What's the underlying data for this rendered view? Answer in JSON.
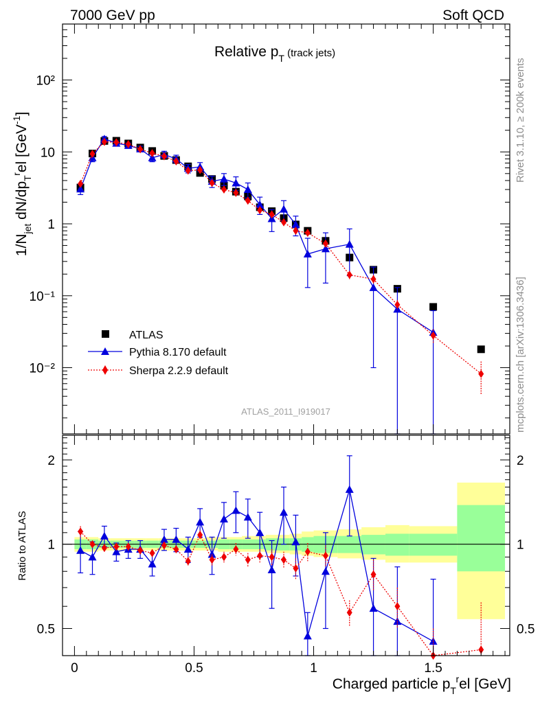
{
  "header": {
    "beam": "7000 GeV pp",
    "process": "Soft QCD"
  },
  "plot_title": "Relative p_T (track jets)",
  "side_labels": {
    "rivet": "Rivet 3.1.10, ≥ 200k events",
    "source": "mcplots.cern.ch [arXiv:1306.3436]"
  },
  "analysis_id": "ATLAS_2011_I919017",
  "colors": {
    "data": "#000000",
    "pythia": "#0000dd",
    "sherpa": "#ee0000",
    "band_inner": "#99ff99",
    "band_outer": "#ffff99"
  },
  "chart_data": [
    {
      "type": "scatter",
      "panel": "main",
      "ylabel": "1/N_jet dN/dp_T^rel [GeV^-1]",
      "xlabel": "",
      "yscale": "log",
      "xlim": [
        -0.05,
        1.82
      ],
      "ylim": [
        0.0012,
        600
      ],
      "yticks": [
        {
          "value": 0.01,
          "label": "10⁻²"
        },
        {
          "value": 0.1,
          "label": "10⁻¹"
        },
        {
          "value": 1,
          "label": "1"
        },
        {
          "value": 10,
          "label": "10"
        },
        {
          "value": 100,
          "label": "10²"
        }
      ],
      "legend": [
        "ATLAS",
        "Pythia 8.170 default",
        "Sherpa 2.2.9 default"
      ],
      "legend_position": "bottom-left",
      "x": [
        0.025,
        0.075,
        0.125,
        0.175,
        0.225,
        0.275,
        0.325,
        0.375,
        0.425,
        0.475,
        0.525,
        0.575,
        0.625,
        0.675,
        0.725,
        0.775,
        0.825,
        0.875,
        0.925,
        0.975,
        1.05,
        1.15,
        1.25,
        1.35,
        1.5,
        1.7
      ],
      "series": [
        {
          "name": "ATLAS",
          "style": "square",
          "values": [
            3.2,
            9.5,
            14.2,
            14.3,
            13.1,
            11.5,
            10.3,
            8.8,
            7.7,
            6.3,
            5.1,
            4.2,
            3.4,
            2.8,
            2.4,
            1.7,
            1.5,
            1.2,
            0.98,
            0.8,
            0.58,
            0.34,
            0.23,
            0.125,
            0.07,
            0.018
          ],
          "err_low": [],
          "err_high": []
        },
        {
          "name": "Pythia 8.170 default",
          "style": "triangle-line",
          "values": [
            3.05,
            8.3,
            15.2,
            13.2,
            12.3,
            11.0,
            8.3,
            9.2,
            8.0,
            5.9,
            6.2,
            3.9,
            4.2,
            3.7,
            3.0,
            1.85,
            1.18,
            1.6,
            0.98,
            0.38,
            0.45,
            0.52,
            0.13,
            0.065,
            0.031
          ],
          "err_low": [
            0.5,
            1.0,
            1.2,
            1.0,
            1.0,
            1.0,
            1.0,
            1.0,
            1.0,
            0.8,
            0.9,
            0.7,
            0.8,
            0.8,
            0.7,
            0.5,
            0.4,
            0.5,
            0.3,
            0.25,
            0.3,
            0.33,
            0.12,
            0.065,
            0.031
          ],
          "err_high": [
            0.5,
            1.0,
            1.2,
            1.0,
            1.0,
            1.0,
            1.0,
            1.0,
            1.0,
            0.8,
            0.9,
            0.7,
            0.8,
            0.8,
            0.7,
            0.5,
            0.4,
            0.5,
            0.3,
            0.25,
            0.3,
            0.33,
            0.12,
            0.065,
            0.031
          ]
        },
        {
          "name": "Sherpa 2.2.9 default",
          "style": "diamond-dotted",
          "values": [
            3.6,
            9.4,
            13.8,
            13.6,
            12.8,
            10.9,
            9.6,
            8.7,
            7.4,
            5.5,
            5.6,
            3.7,
            3.0,
            2.7,
            2.1,
            1.55,
            1.35,
            1.05,
            0.8,
            0.75,
            0.53,
            0.195,
            0.17,
            0.075,
            0.028,
            0.0082
          ],
          "err_low": [
            0.3,
            0.6,
            0.7,
            0.6,
            0.6,
            0.5,
            0.5,
            0.5,
            0.4,
            0.3,
            0.3,
            0.25,
            0.2,
            0.2,
            0.15,
            0.12,
            0.1,
            0.09,
            0.07,
            0.07,
            0.05,
            0.025,
            0.025,
            0.012,
            0.006,
            0.004
          ],
          "err_high": [
            0.3,
            0.6,
            0.7,
            0.6,
            0.6,
            0.5,
            0.5,
            0.5,
            0.4,
            0.3,
            0.3,
            0.25,
            0.2,
            0.2,
            0.15,
            0.12,
            0.1,
            0.09,
            0.07,
            0.07,
            0.05,
            0.025,
            0.025,
            0.012,
            0.006,
            0.004
          ]
        }
      ]
    },
    {
      "type": "scatter",
      "panel": "ratio",
      "ylabel": "Ratio to ATLAS",
      "xlabel": "Charged particle p_T^rel [GeV]",
      "yscale": "log",
      "xlim": [
        -0.05,
        1.82
      ],
      "ylim": [
        0.4,
        2.45
      ],
      "yticks": [
        {
          "value": 0.5,
          "label": "0.5"
        },
        {
          "value": 1,
          "label": "1"
        },
        {
          "value": 2,
          "label": "2"
        }
      ],
      "xticks": [
        {
          "value": 0,
          "label": "0"
        },
        {
          "value": 0.5,
          "label": "0.5"
        },
        {
          "value": 1,
          "label": "1"
        },
        {
          "value": 1.5,
          "label": "1.5"
        }
      ],
      "reference_line": 1,
      "uncertainty_bands": {
        "edges": [
          0.0,
          0.05,
          0.1,
          0.15,
          0.2,
          0.25,
          0.3,
          0.35,
          0.4,
          0.45,
          0.5,
          0.55,
          0.6,
          0.65,
          0.7,
          0.75,
          0.8,
          0.85,
          0.9,
          0.95,
          1.0,
          1.1,
          1.2,
          1.3,
          1.4,
          1.6,
          1.8
        ],
        "inner_low": [
          0.96,
          0.96,
          0.97,
          0.97,
          0.97,
          0.97,
          0.97,
          0.97,
          0.97,
          0.97,
          0.97,
          0.97,
          0.96,
          0.96,
          0.96,
          0.96,
          0.95,
          0.95,
          0.95,
          0.94,
          0.93,
          0.93,
          0.92,
          0.91,
          0.91,
          0.8
        ],
        "inner_high": [
          1.04,
          1.04,
          1.03,
          1.03,
          1.03,
          1.03,
          1.03,
          1.03,
          1.03,
          1.03,
          1.03,
          1.03,
          1.04,
          1.04,
          1.04,
          1.04,
          1.05,
          1.05,
          1.05,
          1.06,
          1.07,
          1.07,
          1.08,
          1.09,
          1.09,
          1.38
        ],
        "outer_low": [
          0.94,
          0.94,
          0.95,
          0.95,
          0.95,
          0.95,
          0.95,
          0.95,
          0.95,
          0.95,
          0.95,
          0.95,
          0.94,
          0.94,
          0.94,
          0.94,
          0.93,
          0.93,
          0.92,
          0.91,
          0.9,
          0.89,
          0.88,
          0.86,
          0.86,
          0.54
        ],
        "outer_high": [
          1.06,
          1.06,
          1.05,
          1.05,
          1.05,
          1.05,
          1.05,
          1.05,
          1.05,
          1.05,
          1.05,
          1.06,
          1.06,
          1.06,
          1.07,
          1.07,
          1.08,
          1.08,
          1.09,
          1.11,
          1.12,
          1.13,
          1.15,
          1.17,
          1.16,
          1.66
        ]
      },
      "x": [
        0.025,
        0.075,
        0.125,
        0.175,
        0.225,
        0.275,
        0.325,
        0.375,
        0.425,
        0.475,
        0.525,
        0.575,
        0.625,
        0.675,
        0.725,
        0.775,
        0.825,
        0.875,
        0.925,
        0.975,
        1.05,
        1.15,
        1.25,
        1.35,
        1.5,
        1.7
      ],
      "series": [
        {
          "name": "Pythia 8.170 default",
          "style": "triangle-line",
          "values": [
            0.95,
            0.9,
            1.07,
            0.94,
            0.96,
            0.96,
            0.85,
            1.04,
            1.04,
            0.96,
            1.2,
            0.92,
            1.23,
            1.32,
            1.25,
            1.1,
            0.81,
            1.3,
            1.02,
            0.47,
            0.8,
            1.57,
            0.59,
            0.53,
            0.45
          ],
          "err_low": [
            0.16,
            0.12,
            0.09,
            0.07,
            0.07,
            0.07,
            0.08,
            0.09,
            0.1,
            0.1,
            0.14,
            0.14,
            0.18,
            0.22,
            0.2,
            0.2,
            0.22,
            0.3,
            0.25,
            0.1,
            0.3,
            0.5,
            0.3,
            0.3,
            0.3
          ],
          "err_high": [
            0.16,
            0.12,
            0.09,
            0.07,
            0.07,
            0.07,
            0.08,
            0.09,
            0.1,
            0.1,
            0.14,
            0.14,
            0.18,
            0.22,
            0.2,
            0.2,
            0.22,
            0.3,
            0.25,
            0.1,
            0.3,
            0.5,
            0.3,
            0.3,
            0.3
          ]
        },
        {
          "name": "Sherpa 2.2.9 default",
          "style": "diamond-dotted",
          "values": [
            1.11,
            1.0,
            0.97,
            0.98,
            0.98,
            0.95,
            0.93,
            0.99,
            0.96,
            0.87,
            1.08,
            0.88,
            0.9,
            0.96,
            0.88,
            0.91,
            0.9,
            0.88,
            0.82,
            0.94,
            0.91,
            0.57,
            0.78,
            0.6,
            0.4,
            0.42
          ],
          "err_low": [
            0.05,
            0.03,
            0.03,
            0.03,
            0.03,
            0.03,
            0.03,
            0.03,
            0.03,
            0.03,
            0.04,
            0.04,
            0.04,
            0.05,
            0.05,
            0.05,
            0.06,
            0.06,
            0.07,
            0.07,
            0.08,
            0.06,
            0.1,
            0.1,
            0.1,
            0.2
          ],
          "err_high": [
            0.05,
            0.03,
            0.03,
            0.03,
            0.03,
            0.03,
            0.03,
            0.03,
            0.03,
            0.03,
            0.04,
            0.04,
            0.04,
            0.05,
            0.05,
            0.05,
            0.06,
            0.06,
            0.07,
            0.07,
            0.08,
            0.06,
            0.1,
            0.1,
            0.1,
            0.2
          ]
        }
      ]
    }
  ]
}
